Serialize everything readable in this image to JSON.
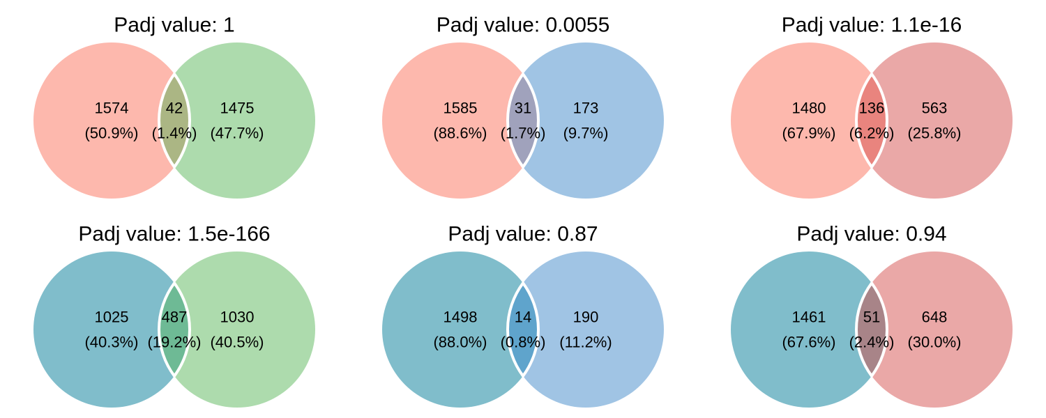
{
  "panels": [
    {
      "title": "Padj value: 1",
      "left": {
        "count": "1574",
        "pct": "(50.9%)",
        "color": "#FDB8AD"
      },
      "overlap": {
        "count": "42",
        "pct": "(1.4%)",
        "color": "#ABB684"
      },
      "right": {
        "count": "1475",
        "pct": "(47.7%)",
        "color": "#ADDBAD"
      }
    },
    {
      "title": "Padj value: 0.0055",
      "left": {
        "count": "1585",
        "pct": "(88.6%)",
        "color": "#FDB8AD"
      },
      "overlap": {
        "count": "31",
        "pct": "(1.7%)",
        "color": "#A0A2BC"
      },
      "right": {
        "count": "173",
        "pct": "(9.7%)",
        "color": "#A0C4E4"
      }
    },
    {
      "title": "Padj value: 1.1e-16",
      "left": {
        "count": "1480",
        "pct": "(67.9%)",
        "color": "#FDB8AD"
      },
      "overlap": {
        "count": "136",
        "pct": "(6.2%)",
        "color": "#E9847E"
      },
      "right": {
        "count": "563",
        "pct": "(25.8%)",
        "color": "#EAA8A7"
      }
    },
    {
      "title": "Padj value: 1.5e-166",
      "left": {
        "count": "1025",
        "pct": "(40.3%)",
        "color": "#80BDCB"
      },
      "overlap": {
        "count": "487",
        "pct": "(19.2%)",
        "color": "#6EBA95"
      },
      "right": {
        "count": "1030",
        "pct": "(40.5%)",
        "color": "#ADDBAD"
      }
    },
    {
      "title": "Padj value: 0.87",
      "left": {
        "count": "1498",
        "pct": "(88.0%)",
        "color": "#80BDCB"
      },
      "overlap": {
        "count": "14",
        "pct": "(0.8%)",
        "color": "#5FA4CC"
      },
      "right": {
        "count": "190",
        "pct": "(11.2%)",
        "color": "#A0C4E4"
      }
    },
    {
      "title": "Padj value: 0.94",
      "left": {
        "count": "1461",
        "pct": "(67.6%)",
        "color": "#80BDCB"
      },
      "overlap": {
        "count": "51",
        "pct": "(2.4%)",
        "color": "#A88488"
      },
      "right": {
        "count": "648",
        "pct": "(30.0%)",
        "color": "#EAA8A7"
      }
    }
  ]
}
